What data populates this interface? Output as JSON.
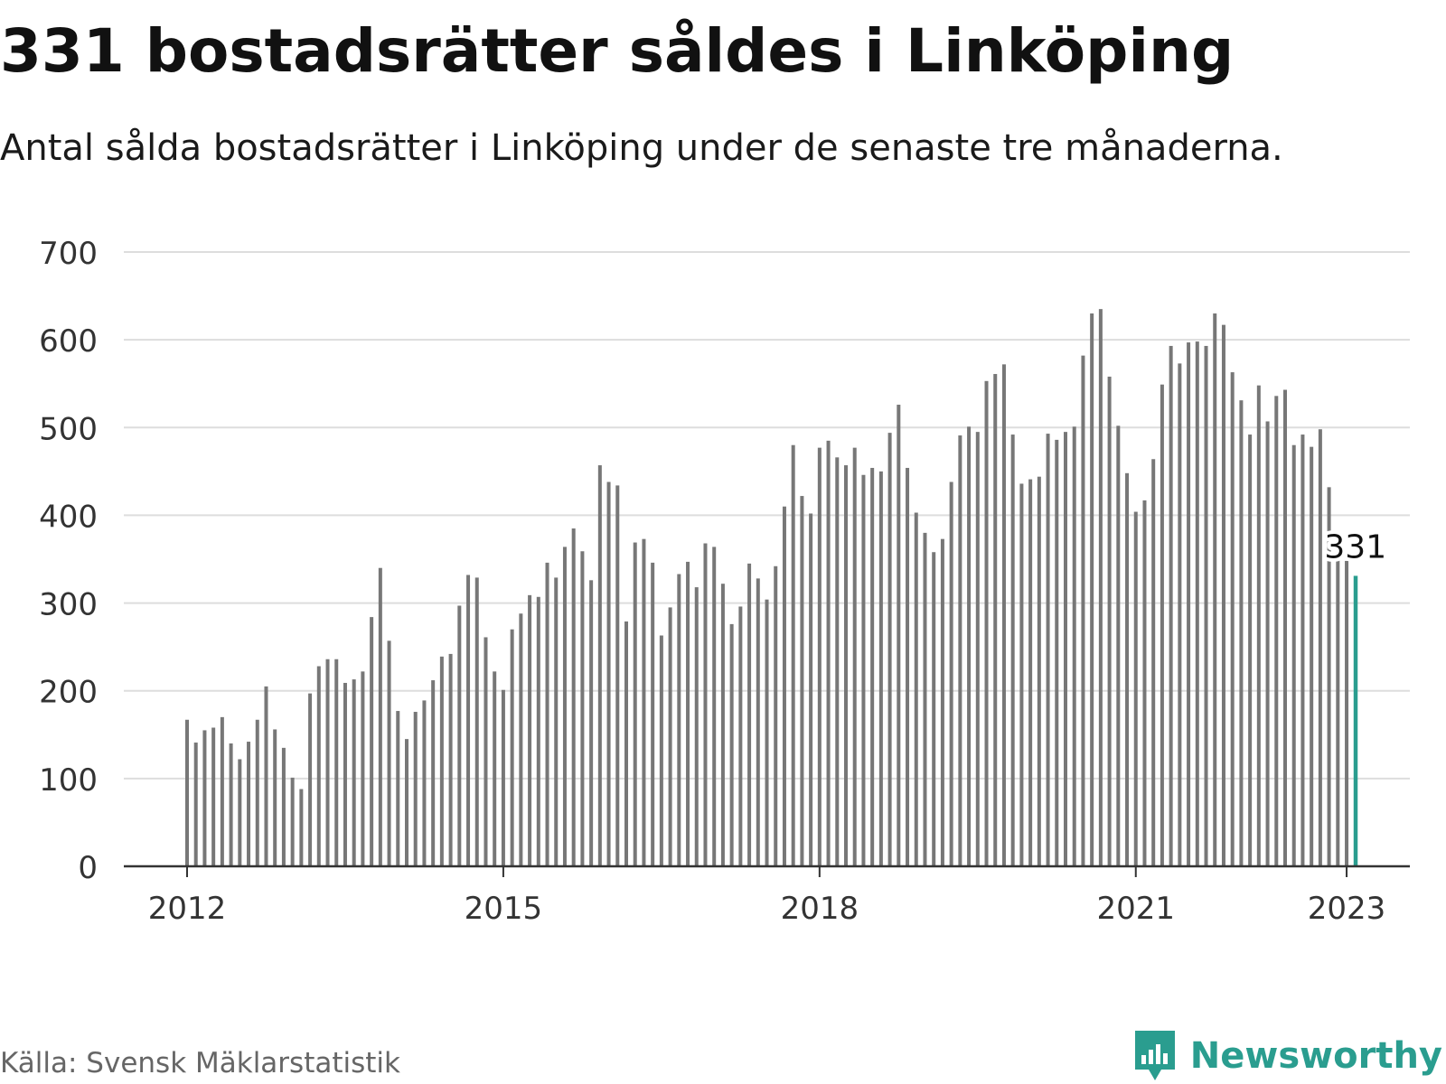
{
  "title": "331 bostadsrätter såldes i Linköping",
  "subtitle": "Antal sålda bostadsrätter i Linköping under de senaste tre månaderna.",
  "source": "Källa: Svensk Mäklarstatistik",
  "brand": {
    "name": "Newsworthy",
    "logo_icon": "bar-chart-speech-bubble-icon",
    "color": "#2a9d8f"
  },
  "chart_data": {
    "type": "bar",
    "x_start": "2012-01",
    "frequency": "monthly",
    "values": [
      167,
      141,
      155,
      158,
      170,
      140,
      122,
      142,
      167,
      205,
      156,
      135,
      101,
      88,
      197,
      228,
      236,
      236,
      209,
      213,
      222,
      284,
      340,
      257,
      177,
      145,
      176,
      189,
      212,
      239,
      242,
      297,
      332,
      329,
      261,
      222,
      201,
      270,
      288,
      309,
      307,
      346,
      329,
      364,
      385,
      359,
      326,
      457,
      438,
      434,
      279,
      369,
      373,
      346,
      263,
      295,
      333,
      347,
      318,
      368,
      364,
      322,
      276,
      296,
      345,
      328,
      304,
      342,
      410,
      480,
      422,
      402,
      477,
      485,
      466,
      457,
      477,
      446,
      454,
      450,
      494,
      526,
      454,
      403,
      380,
      358,
      373,
      438,
      491,
      501,
      495,
      553,
      561,
      572,
      492,
      436,
      441,
      444,
      493,
      486,
      495,
      501,
      582,
      630,
      635,
      558,
      502,
      448,
      404,
      417,
      464,
      549,
      593,
      573,
      597,
      598,
      593,
      630,
      617,
      563,
      531,
      492,
      548,
      507,
      536,
      543,
      480,
      492,
      478,
      498,
      432,
      373,
      348,
      331
    ],
    "highlight": {
      "index": 133,
      "value": 331,
      "label": "331",
      "color": "#2a9d8f"
    },
    "bar_color": "#777777",
    "x_ticks": [
      "2012",
      "2015",
      "2018",
      "2021",
      "2023"
    ],
    "y_ticks": [
      0,
      100,
      200,
      300,
      400,
      500,
      600,
      700
    ],
    "ylim": [
      0,
      700
    ],
    "xlabel": "",
    "ylabel": "",
    "grid": true,
    "legend": "none"
  }
}
